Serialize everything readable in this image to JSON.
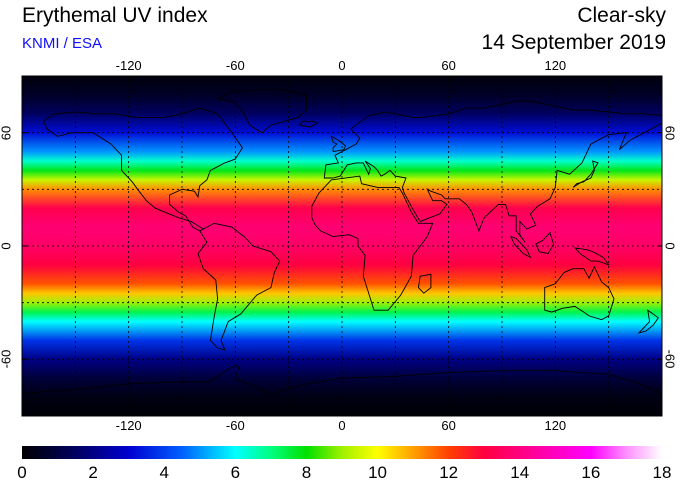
{
  "header": {
    "title": "Erythemal UV index",
    "subtitle": "KNMI / ESA",
    "mode": "Clear-sky",
    "date": "14 September 2019"
  },
  "map": {
    "projection": "equirectangular",
    "lon_range": [
      -180,
      180
    ],
    "lat_range": [
      -90,
      90
    ],
    "lon_ticks": [
      "-120",
      "-60",
      "0",
      "60",
      "120"
    ],
    "lat_ticks": [
      "60",
      "0",
      "-60"
    ],
    "grid_lines": "dotted",
    "grid_lon": [
      -150,
      -120,
      -90,
      -60,
      -30,
      0,
      30,
      60,
      90,
      120,
      150
    ],
    "grid_lat": [
      -60,
      -30,
      0,
      30,
      60
    ],
    "coastlines": "black"
  },
  "colorbar": {
    "min": 0,
    "max": 18,
    "labels": [
      "0",
      "2",
      "4",
      "6",
      "8",
      "10",
      "12",
      "14",
      "16",
      "18"
    ],
    "stops": [
      {
        "value": 0,
        "color": "#000000"
      },
      {
        "value": 1.5,
        "color": "#000060"
      },
      {
        "value": 3,
        "color": "#0000d0"
      },
      {
        "value": 4.5,
        "color": "#0060ff"
      },
      {
        "value": 6,
        "color": "#00ffff"
      },
      {
        "value": 7,
        "color": "#00ff80"
      },
      {
        "value": 8,
        "color": "#00e000"
      },
      {
        "value": 9,
        "color": "#a0f000"
      },
      {
        "value": 10,
        "color": "#ffff00"
      },
      {
        "value": 11,
        "color": "#ffa000"
      },
      {
        "value": 12,
        "color": "#ff4000"
      },
      {
        "value": 13,
        "color": "#ff0040"
      },
      {
        "value": 14,
        "color": "#ff0080"
      },
      {
        "value": 15,
        "color": "#ff00c0"
      },
      {
        "value": 16,
        "color": "#ff00ff"
      },
      {
        "value": 17,
        "color": "#ff90ff"
      },
      {
        "value": 18,
        "color": "#ffffff"
      }
    ]
  },
  "uv_profile": {
    "description": "clear-sky UV index by latitude band",
    "lat": [
      90,
      80,
      70,
      60,
      50,
      45,
      40,
      35,
      30,
      20,
      10,
      0,
      -10,
      -20,
      -25,
      -30,
      -35,
      -40,
      -50,
      -60,
      -70,
      -80,
      -90
    ],
    "uv": [
      0.2,
      0.6,
      1.5,
      3.2,
      5.0,
      6.4,
      7.8,
      9.4,
      11.2,
      13.2,
      13.8,
      13.6,
      13.0,
      11.8,
      10.6,
      9.0,
      7.4,
      6.0,
      3.8,
      2.0,
      0.9,
      0.3,
      0.1
    ]
  }
}
